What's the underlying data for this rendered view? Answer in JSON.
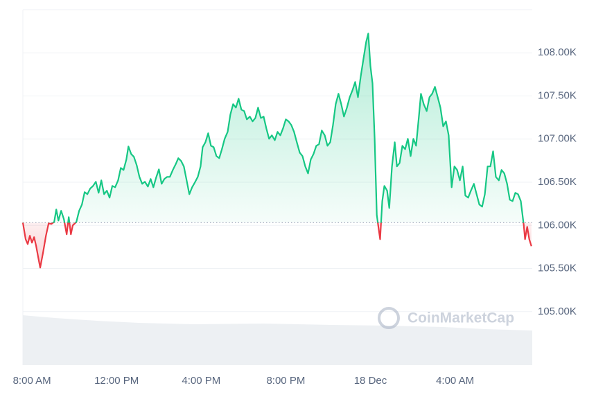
{
  "chart_data": {
    "type": "line",
    "x": [
      -0.43,
      -0.3,
      -0.2,
      -0.1,
      0,
      0.1,
      0.2,
      0.3,
      0.39,
      0.52,
      0.66,
      0.79,
      0.92,
      1.05,
      1.15,
      1.25,
      1.38,
      1.51,
      1.64,
      1.74,
      1.84,
      1.93,
      2.1,
      2.23,
      2.36,
      2.49,
      2.62,
      2.75,
      2.89,
      3.02,
      3.15,
      3.28,
      3.41,
      3.54,
      3.67,
      3.8,
      3.93,
      4.07,
      4.2,
      4.33,
      4.46,
      4.56,
      4.69,
      4.82,
      4.95,
      5.08,
      5.21,
      5.34,
      5.48,
      5.61,
      5.74,
      5.87,
      6.0,
      6.13,
      6.26,
      6.39,
      6.52,
      6.66,
      6.79,
      6.92,
      7.05,
      7.18,
      7.31,
      7.44,
      7.57,
      7.7,
      7.84,
      7.97,
      8.07,
      8.2,
      8.33,
      8.46,
      8.59,
      8.72,
      8.85,
      8.98,
      9.11,
      9.25,
      9.38,
      9.51,
      9.64,
      9.77,
      9.9,
      10.03,
      10.16,
      10.3,
      10.43,
      10.56,
      10.69,
      10.82,
      10.95,
      11.08,
      11.21,
      11.34,
      11.48,
      11.61,
      11.74,
      11.87,
      12.0,
      12.13,
      12.26,
      12.39,
      12.52,
      12.66,
      12.79,
      12.92,
      13.05,
      13.18,
      13.31,
      13.44,
      13.57,
      13.7,
      13.84,
      13.97,
      14.1,
      14.23,
      14.36,
      14.49,
      14.62,
      14.75,
      14.89,
      15.02,
      15.15,
      15.28,
      15.41,
      15.54,
      15.67,
      15.8,
      15.9,
      16.0,
      16.1,
      16.2,
      16.3,
      16.39,
      16.46,
      16.56,
      16.66,
      16.79,
      16.89,
      17.02,
      17.15,
      17.25,
      17.38,
      17.51,
      17.64,
      17.77,
      17.9,
      18.03,
      18.16,
      18.3,
      18.39,
      18.52,
      18.66,
      18.79,
      18.92,
      19.05,
      19.18,
      19.31,
      19.44,
      19.57,
      19.7,
      19.84,
      19.97,
      20.1,
      20.23,
      20.36,
      20.49,
      20.62,
      20.75,
      20.89,
      21.02,
      21.15,
      21.28,
      21.41,
      21.54,
      21.67,
      21.8,
      21.93,
      22.07,
      22.2,
      22.33,
      22.46,
      22.59,
      22.72,
      22.85,
      22.98,
      23.11,
      23.25,
      23.31,
      23.41,
      23.51,
      23.61
    ],
    "values": [
      106032,
      105839,
      105783,
      105880,
      105799,
      105863,
      105759,
      105623,
      105510,
      105679,
      105880,
      106024,
      106016,
      106040,
      106185,
      106056,
      106169,
      106072,
      105896,
      106096,
      105896,
      106000,
      106040,
      106169,
      106241,
      106385,
      106361,
      106426,
      106458,
      106506,
      106377,
      106522,
      106361,
      106402,
      106321,
      106458,
      106442,
      106522,
      106666,
      106642,
      106763,
      106915,
      106827,
      106795,
      106699,
      106562,
      106482,
      106506,
      106450,
      106538,
      106442,
      106554,
      106650,
      106482,
      106538,
      106562,
      106562,
      106642,
      106707,
      106779,
      106747,
      106683,
      106522,
      106361,
      106442,
      106498,
      106562,
      106683,
      106907,
      106964,
      107068,
      106923,
      106907,
      106803,
      106779,
      106883,
      107004,
      107084,
      107285,
      107405,
      107365,
      107469,
      107341,
      107325,
      107229,
      107261,
      107205,
      107245,
      107365,
      107245,
      107261,
      107124,
      107004,
      107044,
      106988,
      107084,
      107044,
      107124,
      107229,
      107205,
      107164,
      107084,
      106964,
      106843,
      106803,
      106683,
      106602,
      106763,
      106827,
      106923,
      106940,
      107100,
      107044,
      106923,
      106964,
      107164,
      107405,
      107526,
      107405,
      107261,
      107365,
      107486,
      107566,
      107662,
      107486,
      107726,
      107927,
      108128,
      108224,
      107847,
      107646,
      107004,
      106120,
      105960,
      105839,
      106281,
      106458,
      106402,
      106201,
      106683,
      106964,
      106683,
      106723,
      106923,
      106883,
      107004,
      106803,
      107004,
      106923,
      107285,
      107526,
      107405,
      107325,
      107486,
      107526,
      107606,
      107486,
      107365,
      107148,
      107205,
      107044,
      106442,
      106683,
      106642,
      106522,
      106683,
      106345,
      106321,
      106402,
      106482,
      106361,
      106241,
      106217,
      106361,
      106683,
      106683,
      106859,
      106562,
      106522,
      106642,
      106602,
      106482,
      106297,
      106281,
      106377,
      106361,
      106281,
      106000,
      105839,
      105984,
      105839,
      105759
    ],
    "baseline": 106032,
    "up_color": "#16c784",
    "down_color": "#ea3943",
    "xlim": [
      -0.43,
      23.65
    ],
    "xticks": [
      {
        "value": 0,
        "label": "8:00 AM"
      },
      {
        "value": 4,
        "label": "12:00 PM"
      },
      {
        "value": 8,
        "label": "4:00 PM"
      },
      {
        "value": 12,
        "label": "8:00 PM"
      },
      {
        "value": 16,
        "label": "18 Dec"
      },
      {
        "value": 20,
        "label": "4:00 AM"
      }
    ],
    "ylim": [
      104380,
      108500
    ],
    "yticks": [
      {
        "value": 105000,
        "label": "105.00K"
      },
      {
        "value": 105500,
        "label": "105.50K"
      },
      {
        "value": 106000,
        "label": "106.00K"
      },
      {
        "value": 106500,
        "label": "106.50K"
      },
      {
        "value": 107000,
        "label": "107.00K"
      },
      {
        "value": 107500,
        "label": "107.50K"
      },
      {
        "value": 108000,
        "label": "108.00K"
      }
    ],
    "grid": true,
    "watermark": "CoinMarketCap"
  }
}
